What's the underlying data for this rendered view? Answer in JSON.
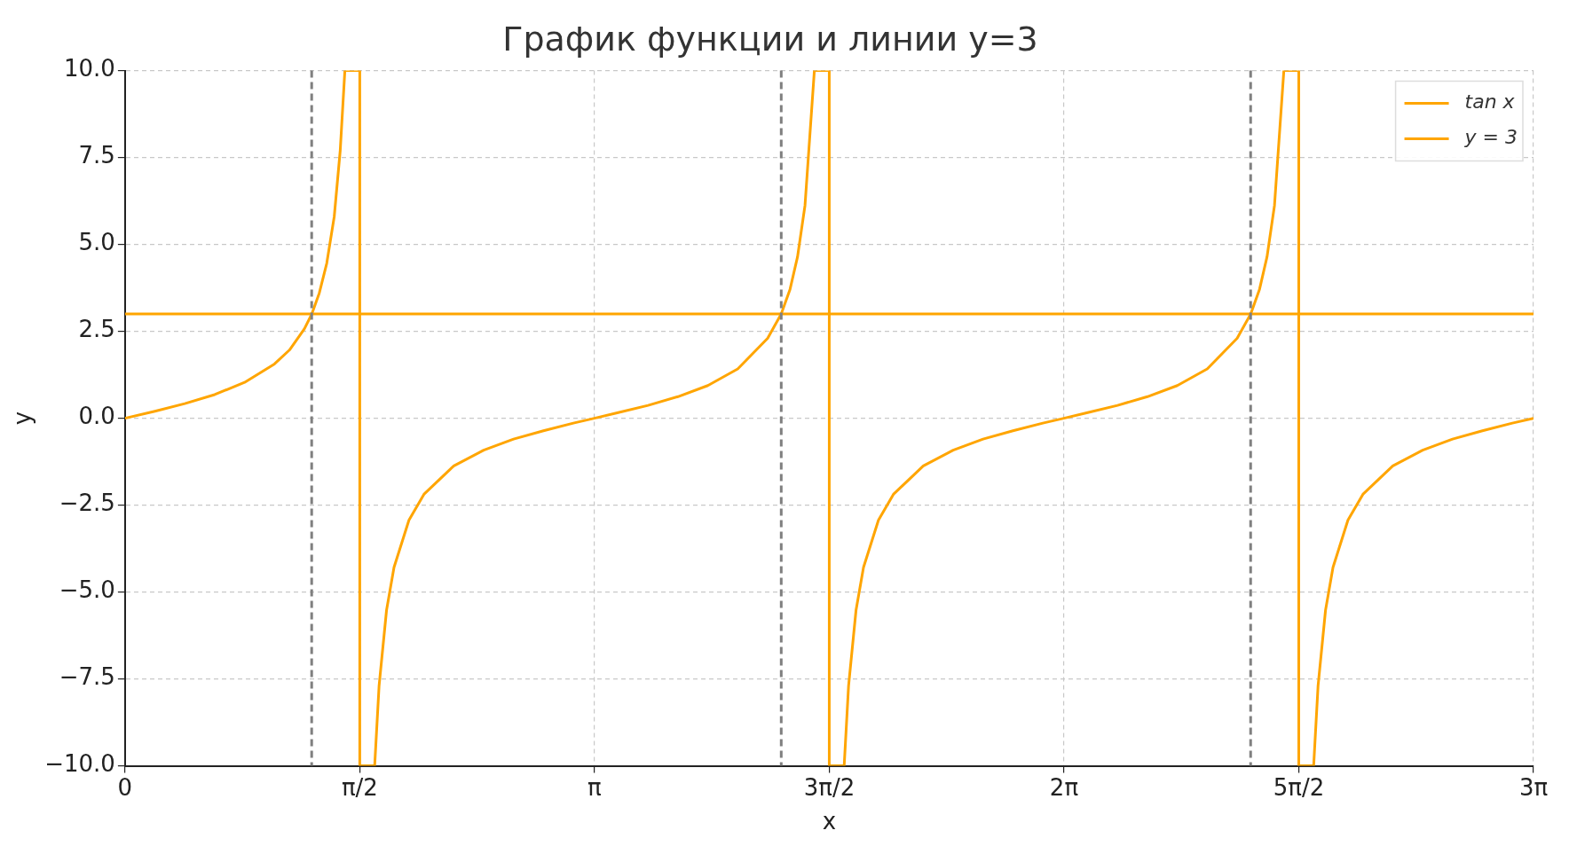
{
  "chart_data": {
    "type": "line",
    "title": "График функции и линии y=3",
    "xlabel": "x",
    "ylabel": "y",
    "xlim": [
      0,
      9.4248
    ],
    "ylim": [
      -10,
      10
    ],
    "xticks": [
      0,
      {
        "value": 1.5708,
        "label": "π/2"
      },
      {
        "value": 3.1416,
        "label": "π"
      },
      {
        "value": 4.7124,
        "label": "3π/2"
      },
      {
        "value": 6.2832,
        "label": "2π"
      },
      {
        "value": 7.854,
        "label": "5π/2"
      },
      {
        "value": 9.4248,
        "label": "3π"
      }
    ],
    "yticks": [
      {
        "value": -10,
        "label": "−10.0"
      },
      {
        "value": -7.5,
        "label": "−7.5"
      },
      {
        "value": -5,
        "label": "−5.0"
      },
      {
        "value": -2.5,
        "label": "−2.5"
      },
      {
        "value": 0,
        "label": "0.0"
      },
      {
        "value": 2.5,
        "label": "2.5"
      },
      {
        "value": 5,
        "label": "5.0"
      },
      {
        "value": 7.5,
        "label": "7.5"
      },
      {
        "value": 10,
        "label": "10.0"
      }
    ],
    "grid": true,
    "legend": "top right",
    "line_style": "solid",
    "marker": "none",
    "series": [
      {
        "name": "tan x",
        "color": "#ffa500",
        "x": [
          0,
          0.2,
          0.4,
          0.6,
          0.8,
          1.0,
          1.1,
          1.2,
          1.25,
          1.3,
          1.35,
          1.4,
          1.44,
          1.4711,
          1.5708,
          1.5708,
          1.6705,
          1.7,
          1.75,
          1.8,
          1.9,
          2.0,
          2.2,
          2.4,
          2.6,
          2.8,
          3.0,
          3.1416,
          3.3,
          3.5,
          3.7,
          3.9,
          4.1,
          4.3,
          4.391,
          4.45,
          4.5,
          4.55,
          4.6127,
          4.7124,
          4.7124,
          4.8121,
          4.8416,
          4.8916,
          4.9416,
          5.0416,
          5.1416,
          5.3416,
          5.5416,
          5.7416,
          5.9416,
          6.1416,
          6.2832,
          6.4416,
          6.6416,
          6.8416,
          7.0416,
          7.2416,
          7.4416,
          7.5327,
          7.5916,
          7.6416,
          7.6916,
          7.7543,
          7.854,
          7.854,
          7.9537,
          7.9832,
          8.0332,
          8.0832,
          8.1832,
          8.2832,
          8.4832,
          8.6832,
          8.8832,
          9.0832,
          9.2832,
          9.4248
        ],
        "values": [
          0,
          0.2,
          0.42,
          0.68,
          1.03,
          1.56,
          1.96,
          2.57,
          3.0,
          3.6,
          4.46,
          5.8,
          7.7,
          10,
          10,
          -10,
          -10,
          -7.7,
          -5.52,
          -4.29,
          -2.93,
          -2.19,
          -1.37,
          -0.92,
          -0.6,
          -0.36,
          -0.14,
          0,
          0.16,
          0.37,
          0.62,
          0.94,
          1.42,
          2.3,
          3.0,
          3.71,
          4.64,
          6.12,
          10,
          10,
          -10,
          -10,
          -7.7,
          -5.52,
          -4.29,
          -2.93,
          -2.19,
          -1.37,
          -0.92,
          -0.6,
          -0.36,
          -0.14,
          0,
          0.16,
          0.37,
          0.62,
          0.94,
          1.42,
          2.3,
          3.0,
          3.71,
          4.64,
          6.12,
          10,
          10,
          -10,
          -10,
          -7.7,
          -5.52,
          -4.29,
          -2.93,
          -2.19,
          -1.37,
          -0.92,
          -0.6,
          -0.36,
          -0.14,
          0
        ]
      },
      {
        "name": "y = 3",
        "color": "#ffa500",
        "x": [
          0,
          9.4248
        ],
        "values": [
          3,
          3
        ]
      }
    ],
    "ref_lines": [
      {
        "axis": "x",
        "value": 1.249,
        "color": "#808080",
        "line_style": "dashed"
      },
      {
        "axis": "x",
        "value": 4.391,
        "color": "#808080",
        "line_style": "dashed"
      },
      {
        "axis": "x",
        "value": 7.532,
        "color": "#808080",
        "line_style": "dashed"
      }
    ]
  }
}
